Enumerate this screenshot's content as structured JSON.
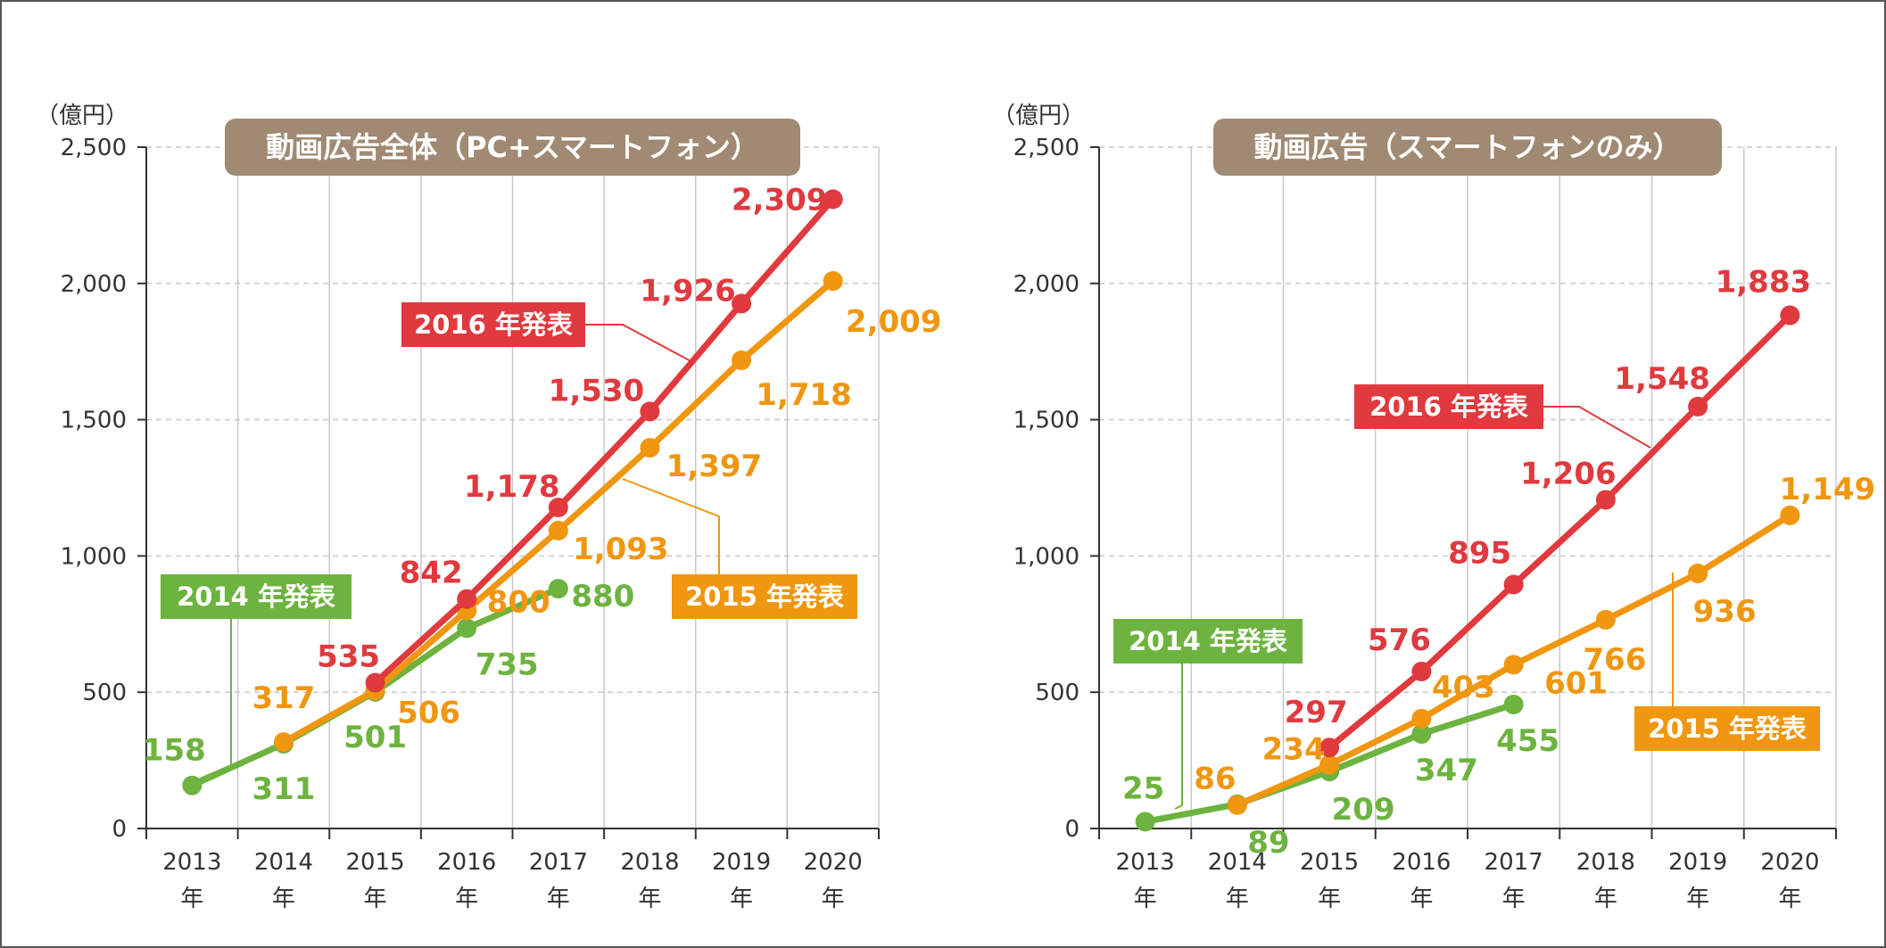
{
  "colors": {
    "red": "#e0393e",
    "orange": "#f0960f",
    "green": "#6db33f",
    "title_bg": "#a08a73",
    "grid": "#c8c8c8",
    "axis": "#333333"
  },
  "chart_data": [
    {
      "type": "line",
      "title": "動画広告全体（PC+スマートフォン）",
      "unit_label": "（億円）",
      "categories": [
        "2013",
        "2014",
        "2015",
        "2016",
        "2017",
        "2018",
        "2019",
        "2020"
      ],
      "category_suffix": "年",
      "y_ticks": [
        "0",
        "500",
        "1,000",
        "1,500",
        "2,000",
        "2,500"
      ],
      "ylim": [
        0,
        2500
      ],
      "grid": true,
      "series": [
        {
          "name": "2014 年発表",
          "color": "green",
          "values": [
            158,
            311,
            501,
            735,
            880,
            null,
            null,
            null
          ],
          "labels": [
            "158",
            "311",
            "501",
            "735",
            "880",
            "",
            "",
            ""
          ]
        },
        {
          "name": "2015 年発表",
          "color": "orange",
          "values": [
            null,
            317,
            506,
            800,
            1093,
            1397,
            1718,
            2009
          ],
          "labels": [
            "",
            "317",
            "506",
            "800",
            "1,093",
            "1,397",
            "1,718",
            "2,009"
          ]
        },
        {
          "name": "2016 年発表",
          "color": "red",
          "values": [
            null,
            null,
            535,
            842,
            1178,
            1530,
            1926,
            2309
          ],
          "labels": [
            "",
            "",
            "535",
            "842",
            "1,178",
            "1,530",
            "1,926",
            "2,309"
          ]
        }
      ]
    },
    {
      "type": "line",
      "title": "動画広告（スマートフォンのみ）",
      "unit_label": "（億円）",
      "categories": [
        "2013",
        "2014",
        "2015",
        "2016",
        "2017",
        "2018",
        "2019",
        "2020"
      ],
      "category_suffix": "年",
      "y_ticks": [
        "0",
        "500",
        "1,000",
        "1,500",
        "2,000",
        "2,500"
      ],
      "ylim": [
        0,
        2500
      ],
      "grid": true,
      "series": [
        {
          "name": "2014 年発表",
          "color": "green",
          "values": [
            25,
            89,
            209,
            347,
            455,
            null,
            null,
            null
          ],
          "labels": [
            "25",
            "89",
            "209",
            "347",
            "455",
            "",
            "",
            ""
          ]
        },
        {
          "name": "2015 年発表",
          "color": "orange",
          "values": [
            null,
            86,
            234,
            403,
            601,
            766,
            936,
            1149
          ],
          "labels": [
            "",
            "86",
            "234",
            "403",
            "601",
            "766",
            "936",
            "1,149"
          ]
        },
        {
          "name": "2016 年発表",
          "color": "red",
          "values": [
            null,
            null,
            297,
            576,
            895,
            1206,
            1548,
            1883
          ],
          "labels": [
            "",
            "",
            "297",
            "576",
            "895",
            "1,206",
            "1,548",
            "1,883"
          ]
        }
      ]
    }
  ]
}
